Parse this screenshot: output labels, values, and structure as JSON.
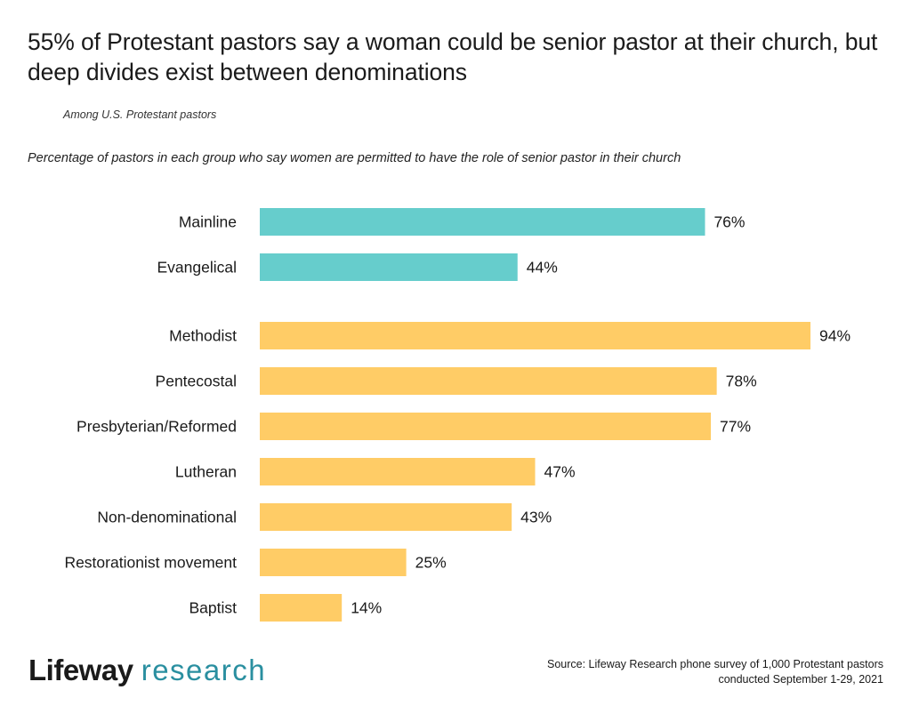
{
  "title": "55% of Protestant pastors say a woman could be senior pastor at their church, but deep divides exist between denominations",
  "subtitle": "Among U.S. Protestant pastors",
  "description": "Percentage of pastors in each group who say women are permitted to have the role of senior pastor in their church",
  "chart_data": {
    "type": "bar",
    "orientation": "horizontal",
    "value_format": "percent",
    "xlim": [
      0,
      100
    ],
    "grid": false,
    "groups": [
      {
        "color": "#66CDCC",
        "categories": [
          "Mainline",
          "Evangelical"
        ],
        "values": [
          76,
          44
        ],
        "labels": [
          "76%",
          "44%"
        ]
      },
      {
        "color": "#FFCC66",
        "categories": [
          "Methodist",
          "Pentecostal",
          "Presbyterian/Reformed",
          "Lutheran",
          "Non-denominational",
          "Restorationist movement",
          "Baptist"
        ],
        "values": [
          94,
          78,
          77,
          47,
          43,
          25,
          14
        ],
        "labels": [
          "94%",
          "78%",
          "77%",
          "47%",
          "43%",
          "25%",
          "14%"
        ]
      }
    ]
  },
  "logo": {
    "brand": "Lifeway",
    "sub": "research"
  },
  "source": {
    "line1": "Source: Lifeway Research phone survey of 1,000 Protestant pastors",
    "line2": "conducted September 1-29, 2021"
  }
}
